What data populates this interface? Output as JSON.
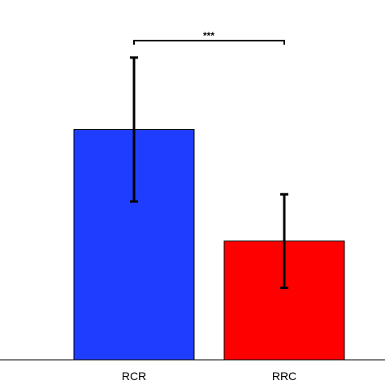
{
  "chart_data": {
    "type": "bar",
    "categories": [
      "RCR",
      "RRC"
    ],
    "values": [
      0.64,
      0.33
    ],
    "errors": [
      0.2,
      0.13
    ],
    "colors": [
      "#1f3dff",
      "#ff0000"
    ],
    "ylim": [
      0,
      1.0
    ],
    "title": "",
    "xlabel": "",
    "ylabel": "",
    "significance": {
      "between": [
        "RCR",
        "RRC"
      ],
      "label": "***"
    }
  }
}
